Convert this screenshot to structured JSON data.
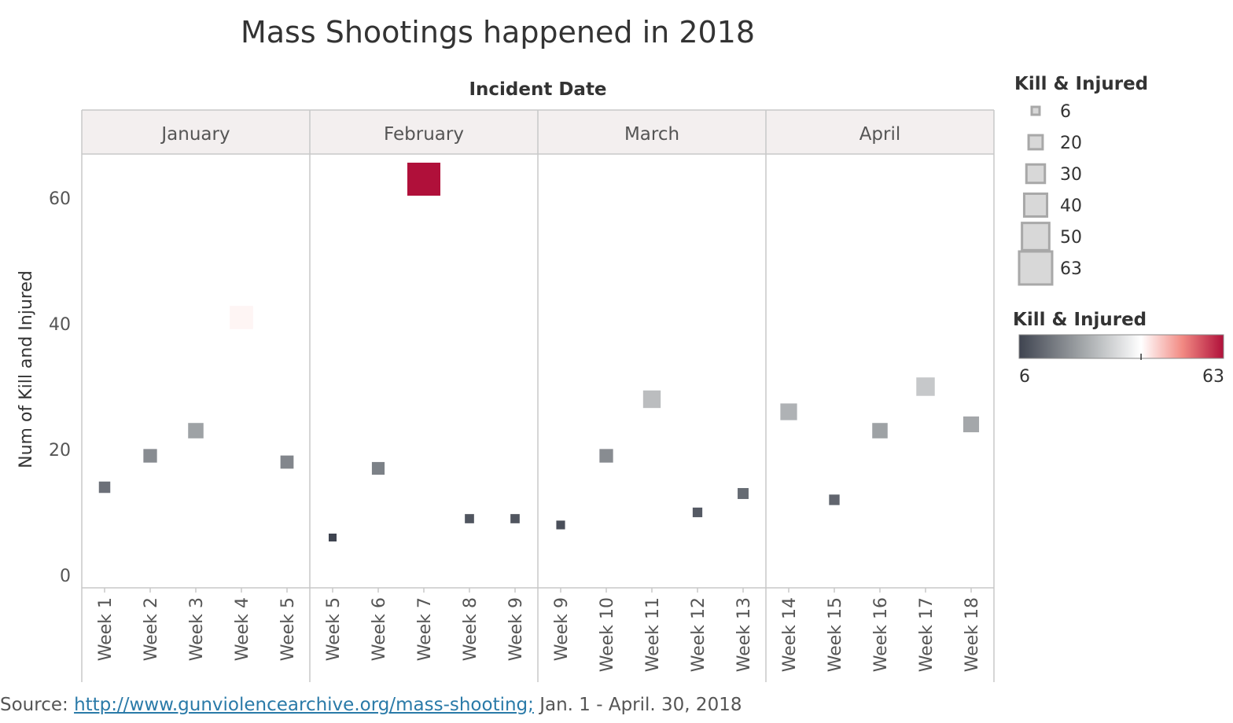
{
  "chart_data": {
    "type": "scatter",
    "title": "Mass Shootings happened in 2018",
    "column_header": "Incident Date",
    "ylabel": "Num of Kill and Injured",
    "ylim": [
      0,
      65
    ],
    "y_ticks": [
      0,
      20,
      40,
      60
    ],
    "grid": false,
    "months": [
      {
        "name": "January",
        "weeks": [
          "Week 1",
          "Week 2",
          "Week 3",
          "Week 4",
          "Week 5"
        ],
        "values": [
          14,
          19,
          23,
          41,
          18
        ]
      },
      {
        "name": "February",
        "weeks": [
          "Week 5",
          "Week 6",
          "Week 7",
          "Week 8",
          "Week 9"
        ],
        "values": [
          6,
          17,
          63,
          9,
          9
        ]
      },
      {
        "name": "March",
        "weeks": [
          "Week 9",
          "Week 10",
          "Week 11",
          "Week 12",
          "Week 13"
        ],
        "values": [
          8,
          19,
          28,
          10,
          13
        ]
      },
      {
        "name": "April",
        "weeks": [
          "Week 14",
          "Week 15",
          "Week 16",
          "Week 17",
          "Week 18"
        ],
        "values": [
          26,
          12,
          23,
          30,
          24
        ]
      }
    ],
    "size_legend": {
      "title": "Kill & Injured",
      "values": [
        "6",
        "20",
        "30",
        "40",
        "50",
        "63"
      ]
    },
    "color_legend": {
      "title": "Kill & Injured",
      "min": "6",
      "max": "63",
      "min_value": 6,
      "max_value": 63,
      "mid_value": 40,
      "colors": [
        "#3f4450",
        "#9ea2a5",
        "#ffffff",
        "#f28a83",
        "#b0103a"
      ]
    }
  },
  "source": {
    "prefix": "Source: ",
    "link_text": "http://www.gunviolencearchive.org/mass-shooting;",
    "suffix": " Jan. 1 - April. 30, 2018"
  }
}
